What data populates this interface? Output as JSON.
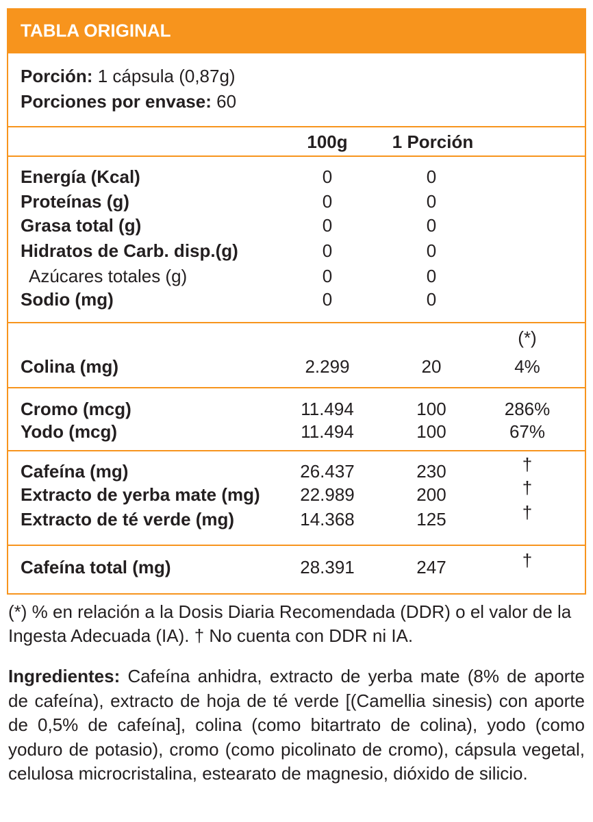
{
  "header": {
    "title": "TABLA ORIGINAL"
  },
  "serving": [
    {
      "label": "Porción:",
      "value": "1 cápsula (0,87g)"
    },
    {
      "label": "Porciones por envase:",
      "value": "60"
    }
  ],
  "columns": [
    "100g",
    "1 Porción"
  ],
  "sections": [
    {
      "rows": [
        {
          "name": "Energía (Kcal)",
          "per_100g": "0",
          "per_serving": "0"
        },
        {
          "name": "Proteínas (g)",
          "per_100g": "0",
          "per_serving": "0"
        },
        {
          "name": "Grasa total (g)",
          "per_100g": "0",
          "per_serving": "0"
        },
        {
          "name": "Hidratos de Carb. disp.(g)",
          "per_100g": "0",
          "per_serving": "0"
        },
        {
          "name": "Azúcares totales (g)",
          "per_100g": "0",
          "per_serving": "0",
          "sub": true
        },
        {
          "name": "Sodio (mg)",
          "per_100g": "0",
          "per_serving": "0"
        }
      ]
    },
    {
      "percent_header": "(*)",
      "rows": [
        {
          "name": "Colina (mg)",
          "per_100g": "2.299",
          "per_serving": "20",
          "percent": "4%"
        }
      ]
    },
    {
      "rows": [
        {
          "name": "Cromo (mcg)",
          "per_100g": "11.494",
          "per_serving": "100",
          "percent": "286%"
        },
        {
          "name": "Yodo (mcg)",
          "per_100g": "11.494",
          "per_serving": "100",
          "percent": "67%"
        }
      ]
    },
    {
      "rows": [
        {
          "name": "Cafeína (mg)",
          "per_100g": "26.437",
          "per_serving": "230",
          "percent": "†"
        },
        {
          "name": "Extracto de yerba mate (mg)",
          "per_100g": "22.989",
          "per_serving": "200",
          "percent": "†"
        },
        {
          "name": "Extracto de té verde (mg)",
          "per_100g": "14.368",
          "per_serving": "125",
          "percent": "†"
        }
      ]
    },
    {
      "rows": [
        {
          "name": "Cafeína total (mg)",
          "per_100g": "28.391",
          "per_serving": "247",
          "percent": "†"
        }
      ]
    }
  ],
  "footnote": "(*) % en relación a la Dosis Diaria Recomendada (DDR) o el valor de la Ingesta Adecuada (IA). † No cuenta con DDR ni IA.",
  "ingredients": {
    "label": "Ingredientes:",
    "text": "Cafeína anhidra, extracto de yerba mate (8% de aporte de cafeína), extracto de hoja de té verde [(Camellia sinesis) con aporte de 0,5% de cafeína], colina (como bitartrato de colina), yodo (como yoduro de potasio), cromo (como picolinato de cromo), cápsula vegetal, celulosa microcristalina, estearato de magnesio, dióxido de silicio."
  }
}
